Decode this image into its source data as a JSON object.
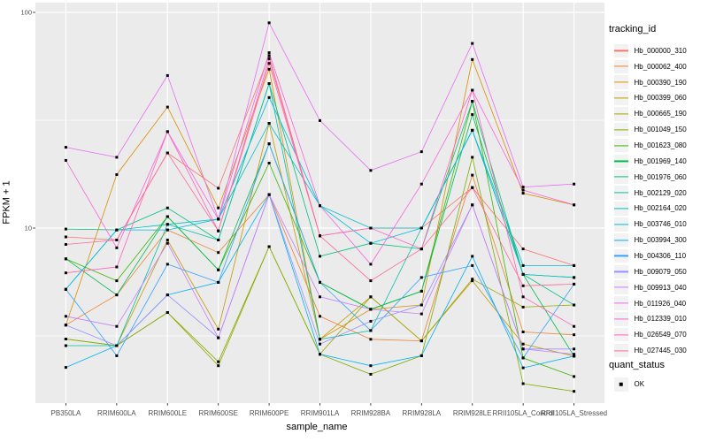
{
  "figure": {
    "y_axis": {
      "title": "FPKM + 1",
      "tick_labels": [
        "100",
        "10"
      ]
    },
    "x_axis": {
      "title": "sample_name"
    },
    "legend": {
      "title": "tracking_id"
    },
    "quant_status": {
      "title": "quant_status",
      "entries": [
        {
          "label": "OK",
          "symbol": "black-square"
        }
      ]
    },
    "colors": {
      "panel_bg": "#EBEBEB",
      "grid": "#FFFFFF",
      "tick_text": "#4D4D4D",
      "title_text": "#000000",
      "legend_key_bg": "#F2F2F2",
      "point": "#000000"
    }
  },
  "chart_data": {
    "type": "line",
    "title": "",
    "xlabel": "sample_name",
    "ylabel": "FPKM + 1",
    "y_scale": "log10",
    "ylim": [
      1.54,
      111
    ],
    "y_major_gridlines": [
      10,
      100
    ],
    "y_minor_gridlines": [
      3.162,
      31.623
    ],
    "grid": "on",
    "legend_position": "right",
    "point_marker": "small black square (quant_status = OK) at every sample for every series",
    "x_categories": [
      "PB350LA",
      "RRIM600LA",
      "RRIM600LE",
      "RRIM600SE",
      "RRIM600PE",
      "RRIM901LA",
      "RRIM928BA",
      "RRIM928LA",
      "RRIM928LE",
      "RRII105LA_Control",
      "RRII105LA_Stressed"
    ],
    "series": [
      {
        "name": "Hb_000000_310",
        "color": "#F8766D",
        "values": [
          9.1,
          8.8,
          22.3,
          15.3,
          63,
          9.2,
          10,
          10,
          15.4,
          8.0,
          6.7
        ]
      },
      {
        "name": "Hb_000062_400",
        "color": "#EA8331",
        "values": [
          3.55,
          4.9,
          9.8,
          7.7,
          14.3,
          3.9,
          3.05,
          3.0,
          17.6,
          3.3,
          3.2
        ]
      },
      {
        "name": "Hb_000390_190",
        "color": "#D89000",
        "values": [
          3.55,
          17.7,
          36.4,
          12.4,
          54.5,
          3.05,
          4.2,
          4.4,
          60.5,
          14.5,
          12.8
        ]
      },
      {
        "name": "Hb_000399_060",
        "color": "#C09B00",
        "values": [
          3.06,
          2.85,
          8.8,
          3.4,
          30.6,
          3.05,
          4.8,
          3.0,
          5.7,
          2.9,
          2.55
        ]
      },
      {
        "name": "Hb_000665_190",
        "color": "#A3A500",
        "values": [
          3.06,
          2.85,
          4.06,
          2.3,
          8.2,
          2.6,
          4.8,
          3.0,
          5.8,
          4.3,
          4.4
        ]
      },
      {
        "name": "Hb_001049_150",
        "color": "#7CAE00",
        "values": [
          3.06,
          2.85,
          4.06,
          2.4,
          8.2,
          2.6,
          2.1,
          2.56,
          21.3,
          1.9,
          1.75
        ]
      },
      {
        "name": "Hb_001623_080",
        "color": "#39B600",
        "values": [
          7.2,
          5.7,
          11.3,
          6.4,
          20,
          5.6,
          4.2,
          5.1,
          38.7,
          2.5,
          2.05
        ]
      },
      {
        "name": "Hb_001969_140",
        "color": "#00BB4E",
        "values": [
          7.2,
          4.9,
          11.3,
          6.4,
          24.6,
          5.6,
          4.2,
          5.1,
          33.6,
          6.1,
          2.55
        ]
      },
      {
        "name": "Hb_001976_060",
        "color": "#00BF7D",
        "values": [
          9.9,
          9.8,
          12.4,
          8.8,
          46.8,
          7.4,
          8.5,
          8.0,
          38.7,
          6.1,
          4.4
        ]
      },
      {
        "name": "Hb_002129_020",
        "color": "#00C1A3",
        "values": [
          2.85,
          2.85,
          10.4,
          8.8,
          46.8,
          3.05,
          3.35,
          10,
          28.4,
          6.1,
          5.9
        ]
      },
      {
        "name": "Hb_002164_020",
        "color": "#00BFC4",
        "values": [
          5.2,
          9.8,
          10.4,
          11.0,
          30.6,
          12.7,
          10,
          10,
          28.4,
          6.1,
          5.9
        ]
      },
      {
        "name": "Hb_003746_010",
        "color": "#00BAE0",
        "values": [
          5.2,
          9.8,
          9.8,
          11.0,
          40.3,
          12.7,
          8.5,
          10,
          28.4,
          6.7,
          6.7
        ]
      },
      {
        "name": "Hb_003994_300",
        "color": "#00B0F6",
        "values": [
          2.26,
          2.85,
          4.9,
          5.6,
          14.3,
          2.6,
          2.3,
          2.56,
          7.4,
          2.25,
          2.55
        ]
      },
      {
        "name": "Hb_004306_110",
        "color": "#35A2FF",
        "values": [
          5.2,
          2.56,
          6.8,
          5.6,
          24.6,
          5.6,
          3.35,
          5.9,
          6.7,
          2.5,
          5.5
        ]
      },
      {
        "name": "Hb_009079_050",
        "color": "#9590FF",
        "values": [
          3.55,
          2.85,
          4.9,
          3.1,
          14.3,
          2.9,
          3.7,
          4.4,
          12.8,
          2.75,
          2.75
        ]
      },
      {
        "name": "Hb_009913_040",
        "color": "#C77CFF",
        "values": [
          3.9,
          3.5,
          8.5,
          3.1,
          14.3,
          4.8,
          4.2,
          4.0,
          12.8,
          2.75,
          2.6
        ]
      },
      {
        "name": "Hb_011926_040",
        "color": "#E76BF3",
        "values": [
          23.7,
          21.3,
          51,
          11.0,
          89.5,
          31.5,
          18.5,
          22.6,
          71.8,
          15.5,
          16.0
        ]
      },
      {
        "name": "Hb_012339_010",
        "color": "#FA62DB",
        "values": [
          20.6,
          8.1,
          28,
          11.0,
          65,
          12.7,
          6.8,
          16.0,
          43.6,
          15.0,
          12.8
        ]
      },
      {
        "name": "Hb_026549_070",
        "color": "#FF62BC",
        "values": [
          6.2,
          6.6,
          28,
          9.7,
          61,
          9.2,
          10,
          8.0,
          43.6,
          4.8,
          3.5
        ]
      },
      {
        "name": "Hb_027445_030",
        "color": "#FF6A98",
        "values": [
          8.4,
          8.8,
          22.3,
          9.7,
          58,
          9.2,
          5.7,
          8.0,
          15.4,
          5.4,
          5.5
        ]
      }
    ]
  }
}
